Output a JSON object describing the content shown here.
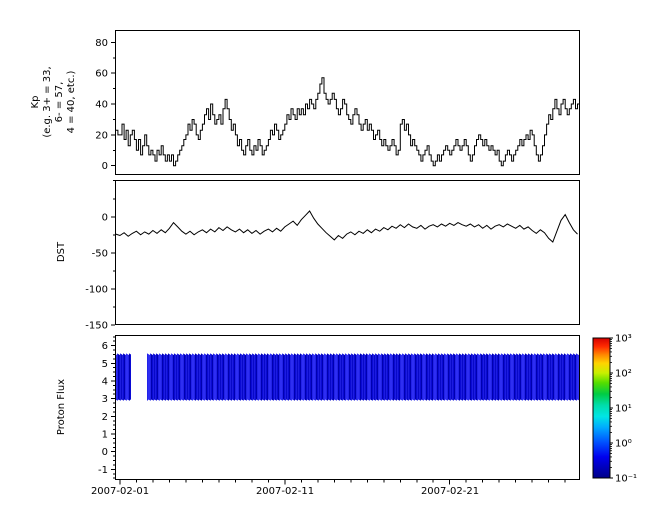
{
  "figure": {
    "background": "#ffffff",
    "line_color": "#000000"
  },
  "chart_data": {
    "type": "multi-panel-timeseries",
    "x_axis": {
      "unit": "days since 2007-02-01",
      "range": [
        -0.3,
        27.9
      ],
      "tick_days": [
        0,
        10,
        20
      ],
      "tick_labels": [
        "2007-02-01",
        "2007-02-11",
        "2007-02-21"
      ],
      "minor_tick_step_days": 1
    },
    "panels": [
      {
        "name": "kp",
        "ylabel_lines": [
          "Kp",
          "(e.g. 3+ = 33,",
          "6- = 57,",
          "4 = 40, etc.)"
        ],
        "ylim": [
          -6,
          88
        ],
        "yticks": [
          0,
          20,
          40,
          60,
          80
        ],
        "yminor_step": 10,
        "series": {
          "type": "step",
          "t_start_days": -0.25,
          "dt_hours": 3,
          "values": [
            23,
            20,
            20,
            27,
            17,
            23,
            13,
            20,
            23,
            17,
            10,
            17,
            7,
            13,
            20,
            13,
            7,
            10,
            7,
            3,
            10,
            7,
            13,
            7,
            3,
            7,
            3,
            7,
            0,
            3,
            7,
            10,
            13,
            17,
            20,
            27,
            23,
            30,
            27,
            20,
            17,
            23,
            27,
            33,
            37,
            30,
            40,
            33,
            27,
            30,
            33,
            27,
            37,
            43,
            37,
            30,
            23,
            27,
            20,
            13,
            17,
            10,
            7,
            13,
            17,
            10,
            7,
            13,
            10,
            17,
            13,
            7,
            10,
            13,
            17,
            23,
            20,
            27,
            23,
            17,
            20,
            23,
            27,
            33,
            30,
            37,
            33,
            30,
            37,
            33,
            37,
            33,
            40,
            37,
            43,
            40,
            37,
            43,
            47,
            53,
            57,
            47,
            43,
            40,
            43,
            47,
            43,
            37,
            33,
            37,
            43,
            40,
            33,
            30,
            27,
            33,
            37,
            33,
            27,
            23,
            27,
            30,
            23,
            27,
            23,
            17,
            20,
            23,
            17,
            13,
            17,
            13,
            10,
            13,
            17,
            13,
            7,
            10,
            27,
            30,
            23,
            27,
            20,
            13,
            17,
            13,
            10,
            7,
            3,
            7,
            10,
            13,
            7,
            3,
            0,
            3,
            7,
            3,
            7,
            10,
            13,
            10,
            7,
            10,
            13,
            17,
            13,
            10,
            13,
            17,
            13,
            7,
            3,
            7,
            13,
            17,
            20,
            17,
            13,
            17,
            13,
            10,
            13,
            10,
            7,
            10,
            3,
            0,
            3,
            7,
            10,
            7,
            3,
            7,
            10,
            13,
            17,
            13,
            17,
            20,
            17,
            23,
            20,
            13,
            7,
            3,
            7,
            13,
            20,
            27,
            33,
            30,
            37,
            43,
            37,
            33,
            40,
            43,
            37,
            33,
            37,
            40,
            43,
            37,
            40,
            37
          ]
        }
      },
      {
        "name": "dst",
        "ylabel": "DST",
        "ylim": [
          -150,
          51
        ],
        "yticks": [
          0,
          -50,
          -100,
          -150
        ],
        "yminor_step": 25,
        "series": {
          "type": "line",
          "t_start_days": -0.25,
          "dt_hours": 6,
          "values": [
            -24,
            -26,
            -22,
            -27,
            -23,
            -20,
            -25,
            -21,
            -24,
            -19,
            -23,
            -18,
            -22,
            -16,
            -8,
            -14,
            -20,
            -24,
            -20,
            -25,
            -21,
            -18,
            -22,
            -17,
            -21,
            -15,
            -19,
            -14,
            -18,
            -21,
            -17,
            -22,
            -18,
            -23,
            -19,
            -24,
            -20,
            -17,
            -21,
            -16,
            -20,
            -14,
            -10,
            -6,
            -12,
            -4,
            2,
            8,
            -2,
            -10,
            -16,
            -22,
            -27,
            -32,
            -26,
            -30,
            -24,
            -21,
            -25,
            -20,
            -23,
            -18,
            -22,
            -17,
            -20,
            -15,
            -18,
            -13,
            -16,
            -11,
            -15,
            -10,
            -14,
            -16,
            -12,
            -17,
            -13,
            -11,
            -14,
            -10,
            -13,
            -9,
            -12,
            -8,
            -11,
            -13,
            -10,
            -14,
            -11,
            -16,
            -12,
            -17,
            -13,
            -11,
            -14,
            -10,
            -13,
            -16,
            -12,
            -17,
            -14,
            -19,
            -23,
            -18,
            -22,
            -30,
            -35,
            -20,
            -5,
            3,
            -8,
            -18,
            -24
          ]
        }
      },
      {
        "name": "proton_flux",
        "ylabel": "Proton Flux",
        "ylim": [
          -1.6,
          6.6
        ],
        "yticks": [
          -1,
          0,
          1,
          2,
          3,
          4,
          5,
          6
        ],
        "yminor_step": 0.25,
        "band": {
          "description": "spectrogram band of low proton flux values",
          "segments": [
            {
              "t0": -0.3,
              "t1": 0.65
            },
            {
              "t0": 1.65,
              "t1": 27.9
            }
          ],
          "y_bottom": 2.9,
          "y_top": 5.55,
          "palette": [
            "#0808c8",
            "#1d1de0",
            "#0000b0",
            "#2e2ef2",
            "#0a0ad4",
            "#2222e8",
            "#000098"
          ]
        }
      }
    ],
    "colorbar": {
      "scale": "log",
      "range_exponents": [
        3,
        -1
      ],
      "tick_labels": [
        "10³",
        "10²",
        "10¹",
        "10⁰",
        "10⁻¹"
      ],
      "gradient_top_to_bottom": [
        {
          "pos": 0.0,
          "color": "#d40000"
        },
        {
          "pos": 0.06,
          "color": "#ff2a00"
        },
        {
          "pos": 0.12,
          "color": "#ff8800"
        },
        {
          "pos": 0.18,
          "color": "#ffd300"
        },
        {
          "pos": 0.25,
          "color": "#c8f000"
        },
        {
          "pos": 0.32,
          "color": "#55dd00"
        },
        {
          "pos": 0.4,
          "color": "#00cc44"
        },
        {
          "pos": 0.48,
          "color": "#00ddaa"
        },
        {
          "pos": 0.56,
          "color": "#00e5e5"
        },
        {
          "pos": 0.64,
          "color": "#00aaff"
        },
        {
          "pos": 0.74,
          "color": "#0055ff"
        },
        {
          "pos": 0.85,
          "color": "#0000ee"
        },
        {
          "pos": 1.0,
          "color": "#000088"
        }
      ]
    }
  }
}
